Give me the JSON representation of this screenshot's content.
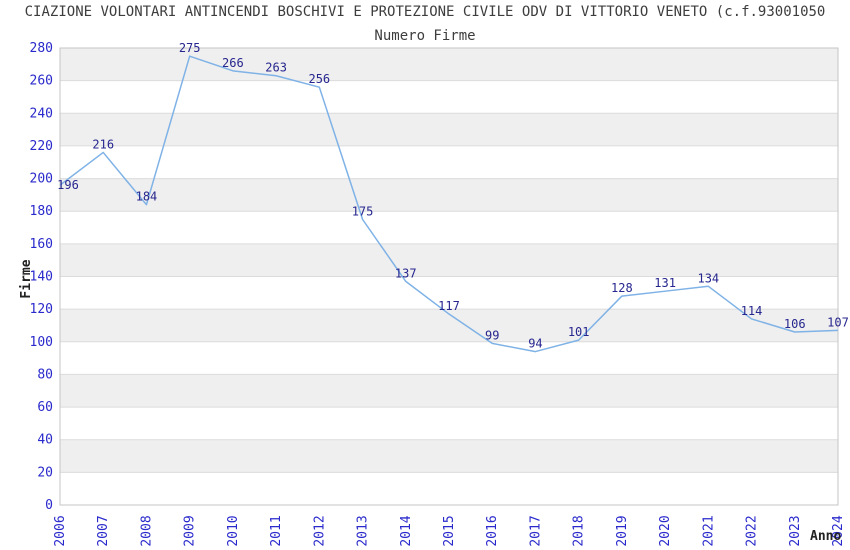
{
  "header": {
    "title": "CIAZIONE VOLONTARI ANTINCENDI BOSCHIVI E PROTEZIONE CIVILE ODV DI VITTORIO VENETO (c.f.93001050",
    "subtitle": "Numero Firme"
  },
  "chart_data": {
    "type": "line",
    "title": "Numero Firme",
    "x": [
      "2006",
      "2007",
      "2008",
      "2009",
      "2010",
      "2011",
      "2012",
      "2013",
      "2014",
      "2015",
      "2016",
      "2017",
      "2018",
      "2019",
      "2020",
      "2021",
      "2022",
      "2023",
      "2024"
    ],
    "values": [
      196,
      216,
      184,
      275,
      266,
      263,
      256,
      175,
      137,
      117,
      99,
      94,
      101,
      128,
      131,
      134,
      114,
      106,
      107
    ],
    "xlabel": "Anno",
    "ylabel": "Firme",
    "ylim": [
      0,
      280
    ],
    "ytick_step": 20,
    "grid": true,
    "band_fill": "alternating-gray-from-top",
    "x_label_rotation": -90,
    "legend": "none",
    "data_labels": true,
    "colors": {
      "line": "#7fb2e6",
      "data_label": "#26268f",
      "tick_label": "#2929cc",
      "band": "#efefef",
      "gridline": "#dcdcdc",
      "plot_border": "#c6c6c6",
      "title_text": "#3d3d3d",
      "axis_title_text": "#222222",
      "background": "#ffffff"
    }
  }
}
